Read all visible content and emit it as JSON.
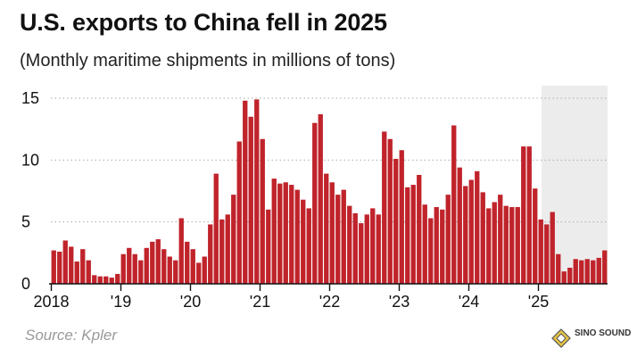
{
  "title": "U.S. exports to China fell in 2025",
  "subtitle": "(Monthly maritime shipments in millions of tons)",
  "source": "Source: Kpler",
  "watermark": {
    "text": "SINO SOUND"
  },
  "colors": {
    "bar": "#c0232b",
    "highlight": "#ececec",
    "grid": "#aaaaaa",
    "axis": "#111111"
  },
  "chart_data": {
    "type": "bar",
    "title": "U.S. exports to China fell in 2025",
    "subtitle": "(Monthly maritime shipments in millions of tons)",
    "xlabel": "",
    "ylabel": "",
    "ylim": [
      0,
      15
    ],
    "yticks": [
      0,
      5,
      10,
      15
    ],
    "ytick_labels": [
      "0",
      "5",
      "10",
      "15"
    ],
    "grid": "horizontal-dotted",
    "x_tick_labels": [
      {
        "label": "2018",
        "month_index": 0
      },
      {
        "label": "'19",
        "month_index": 12
      },
      {
        "label": "'20",
        "month_index": 24
      },
      {
        "label": "'21",
        "month_index": 36
      },
      {
        "label": "'22",
        "month_index": 48
      },
      {
        "label": "'23",
        "month_index": 60
      },
      {
        "label": "'24",
        "month_index": 72
      },
      {
        "label": "'25",
        "month_index": 84
      }
    ],
    "highlight_from_month_index": 84,
    "start_month": "2018-01",
    "values": [
      2.7,
      2.6,
      3.5,
      3.0,
      1.8,
      2.8,
      1.9,
      0.7,
      0.6,
      0.6,
      0.5,
      0.8,
      2.4,
      2.9,
      2.4,
      1.9,
      2.9,
      3.4,
      3.6,
      2.8,
      2.2,
      1.9,
      5.3,
      3.4,
      2.8,
      1.7,
      2.2,
      4.8,
      8.9,
      5.2,
      5.6,
      7.2,
      11.5,
      14.8,
      13.5,
      14.9,
      11.7,
      6.0,
      8.5,
      8.1,
      8.2,
      8.0,
      7.6,
      6.8,
      6.1,
      13.0,
      13.7,
      8.9,
      8.2,
      7.2,
      7.6,
      6.3,
      5.7,
      4.9,
      5.6,
      6.1,
      5.6,
      12.3,
      11.7,
      10.1,
      10.8,
      7.8,
      8.0,
      8.8,
      6.4,
      5.3,
      6.2,
      6.0,
      7.2,
      12.8,
      9.4,
      7.9,
      8.4,
      9.1,
      7.4,
      6.1,
      6.6,
      7.2,
      6.3,
      6.2,
      6.2,
      11.1,
      11.1,
      7.7,
      5.2,
      4.8,
      5.8,
      2.4,
      1.0,
      1.3,
      2.0,
      1.9,
      2.0,
      1.9,
      2.1,
      2.7
    ]
  }
}
